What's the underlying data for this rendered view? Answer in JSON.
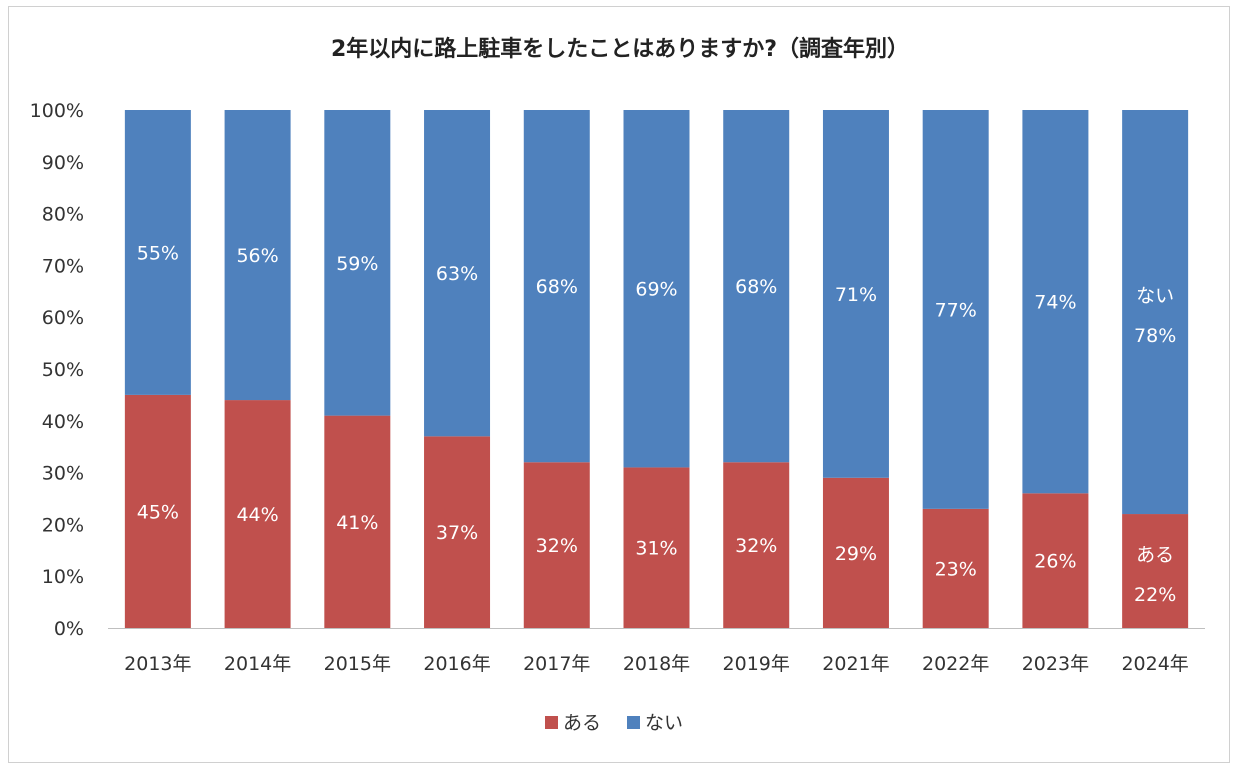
{
  "chart_data": {
    "type": "bar",
    "stacked": true,
    "title": "2年以内に路上駐車をしたことはありますか?（調査年別）",
    "categories": [
      "2013年",
      "2014年",
      "2015年",
      "2016年",
      "2017年",
      "2018年",
      "2019年",
      "2021年",
      "2022年",
      "2023年",
      "2024年"
    ],
    "series": [
      {
        "name": "ある",
        "color": "#c0504d",
        "values": [
          45,
          44,
          41,
          37,
          32,
          31,
          32,
          29,
          23,
          26,
          22
        ],
        "labels": [
          "45%",
          "44%",
          "41%",
          "37%",
          "32%",
          "31%",
          "32%",
          "29%",
          "23%",
          "26%",
          "22%"
        ]
      },
      {
        "name": "ない",
        "color": "#4f81bd",
        "values": [
          55,
          56,
          59,
          63,
          68,
          69,
          68,
          71,
          77,
          74,
          78
        ],
        "labels": [
          "55%",
          "56%",
          "59%",
          "63%",
          "68%",
          "69%",
          "68%",
          "71%",
          "77%",
          "74%",
          "78%"
        ]
      }
    ],
    "ylim": [
      0,
      100
    ],
    "yticks": [
      "0%",
      "10%",
      "20%",
      "30%",
      "40%",
      "50%",
      "60%",
      "70%",
      "80%",
      "90%",
      "100%"
    ],
    "last_bar_series_labels": [
      "ある",
      "ない"
    ],
    "grid": false,
    "legend": "bottom"
  }
}
